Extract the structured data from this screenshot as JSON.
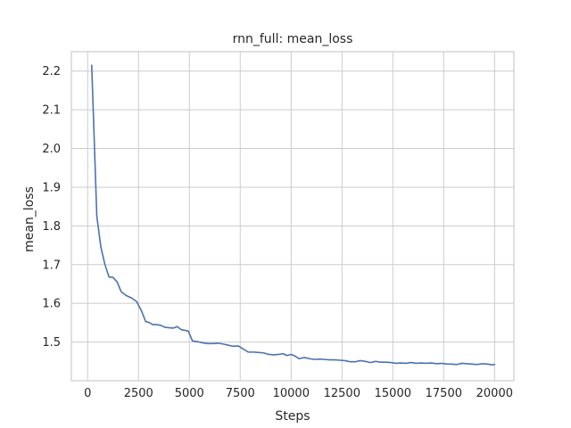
{
  "chart_data": {
    "type": "line",
    "title": "rnn_full: mean_loss",
    "xlabel": "Steps",
    "ylabel": "mean_loss",
    "xlim": [
      -800,
      20950
    ],
    "ylim": [
      1.4,
      2.25
    ],
    "xticks": [
      0,
      2500,
      5000,
      7500,
      10000,
      12500,
      15000,
      17500,
      20000
    ],
    "yticks": [
      1.5,
      1.6,
      1.7,
      1.8,
      1.9,
      2.0,
      2.1,
      2.2
    ],
    "grid": true,
    "colors": {
      "line": "#4c72b0",
      "grid": "#cccccc",
      "frame": "#cccccc",
      "background": "#ffffff"
    },
    "series": [
      {
        "x": [
          200,
          450,
          650,
          850,
          1050,
          1250,
          1450,
          1650,
          1900,
          2150,
          2400,
          2650,
          2850,
          3050,
          3200,
          3400,
          3600,
          3800,
          4000,
          4200,
          4400,
          4600,
          4800,
          4950,
          5150,
          5400,
          5650,
          5900,
          6150,
          6400,
          6650,
          6900,
          7150,
          7400,
          7650,
          7900,
          8150,
          8400,
          8650,
          8900,
          9150,
          9400,
          9600,
          9800,
          10000,
          10150,
          10400,
          10650,
          10900,
          11150,
          11400,
          11650,
          11900,
          12150,
          12400,
          12650,
          12900,
          13150,
          13400,
          13650,
          13900,
          14150,
          14400,
          14650,
          14900,
          15150,
          15400,
          15650,
          15900,
          16150,
          16400,
          16650,
          16900,
          17150,
          17400,
          17650,
          17900,
          18150,
          18400,
          18650,
          18900,
          19150,
          19400,
          19650,
          19900,
          20000
        ],
        "y": [
          2.215,
          1.825,
          1.745,
          1.7,
          1.668,
          1.667,
          1.655,
          1.63,
          1.62,
          1.614,
          1.605,
          1.58,
          1.553,
          1.55,
          1.545,
          1.545,
          1.543,
          1.538,
          1.537,
          1.536,
          1.54,
          1.532,
          1.53,
          1.528,
          1.503,
          1.501,
          1.498,
          1.496,
          1.496,
          1.497,
          1.495,
          1.492,
          1.489,
          1.49,
          1.482,
          1.474,
          1.474,
          1.473,
          1.472,
          1.468,
          1.467,
          1.468,
          1.47,
          1.465,
          1.468,
          1.465,
          1.457,
          1.46,
          1.457,
          1.455,
          1.456,
          1.455,
          1.454,
          1.454,
          1.453,
          1.452,
          1.449,
          1.449,
          1.452,
          1.45,
          1.447,
          1.45,
          1.448,
          1.448,
          1.447,
          1.445,
          1.446,
          1.445,
          1.447,
          1.445,
          1.446,
          1.445,
          1.446,
          1.444,
          1.445,
          1.443,
          1.443,
          1.442,
          1.445,
          1.444,
          1.443,
          1.442,
          1.444,
          1.443,
          1.441,
          1.442
        ]
      }
    ]
  }
}
